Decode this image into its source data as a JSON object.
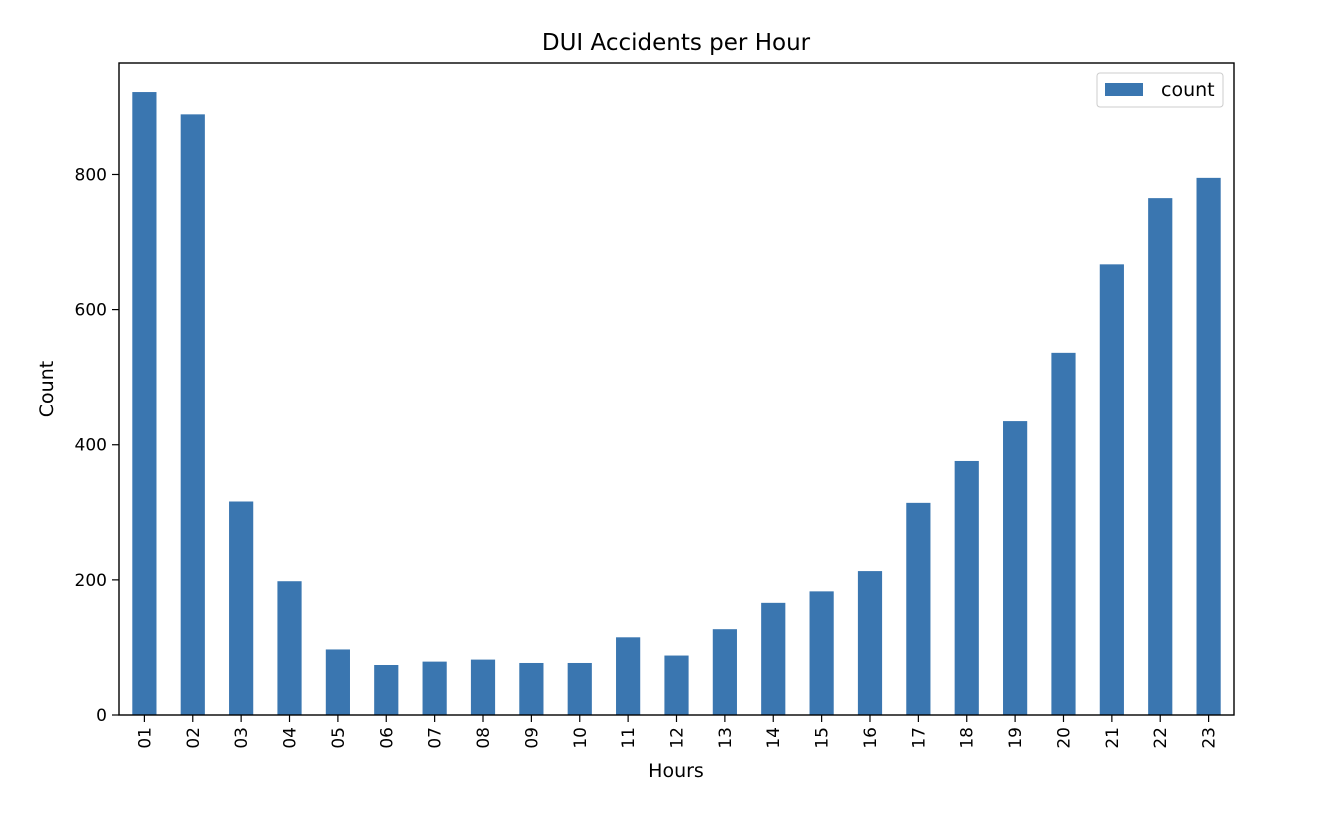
{
  "chart_data": {
    "type": "bar",
    "title": "DUI Accidents per Hour",
    "xlabel": "Hours",
    "ylabel": "Count",
    "categories": [
      "01",
      "02",
      "03",
      "04",
      "05",
      "06",
      "07",
      "08",
      "09",
      "10",
      "11",
      "12",
      "13",
      "14",
      "15",
      "16",
      "17",
      "18",
      "19",
      "20",
      "21",
      "22",
      "23"
    ],
    "series": [
      {
        "name": "count",
        "values": [
          922,
          889,
          316,
          198,
          97,
          74,
          79,
          82,
          77,
          77,
          115,
          88,
          127,
          166,
          183,
          213,
          314,
          376,
          435,
          536,
          667,
          765,
          795
        ]
      }
    ],
    "ylim": [
      0,
      965
    ],
    "yticks": [
      0,
      200,
      400,
      600,
      800
    ],
    "grid": false,
    "legend_position": "top-right",
    "bar_color": "#3a76b0"
  }
}
